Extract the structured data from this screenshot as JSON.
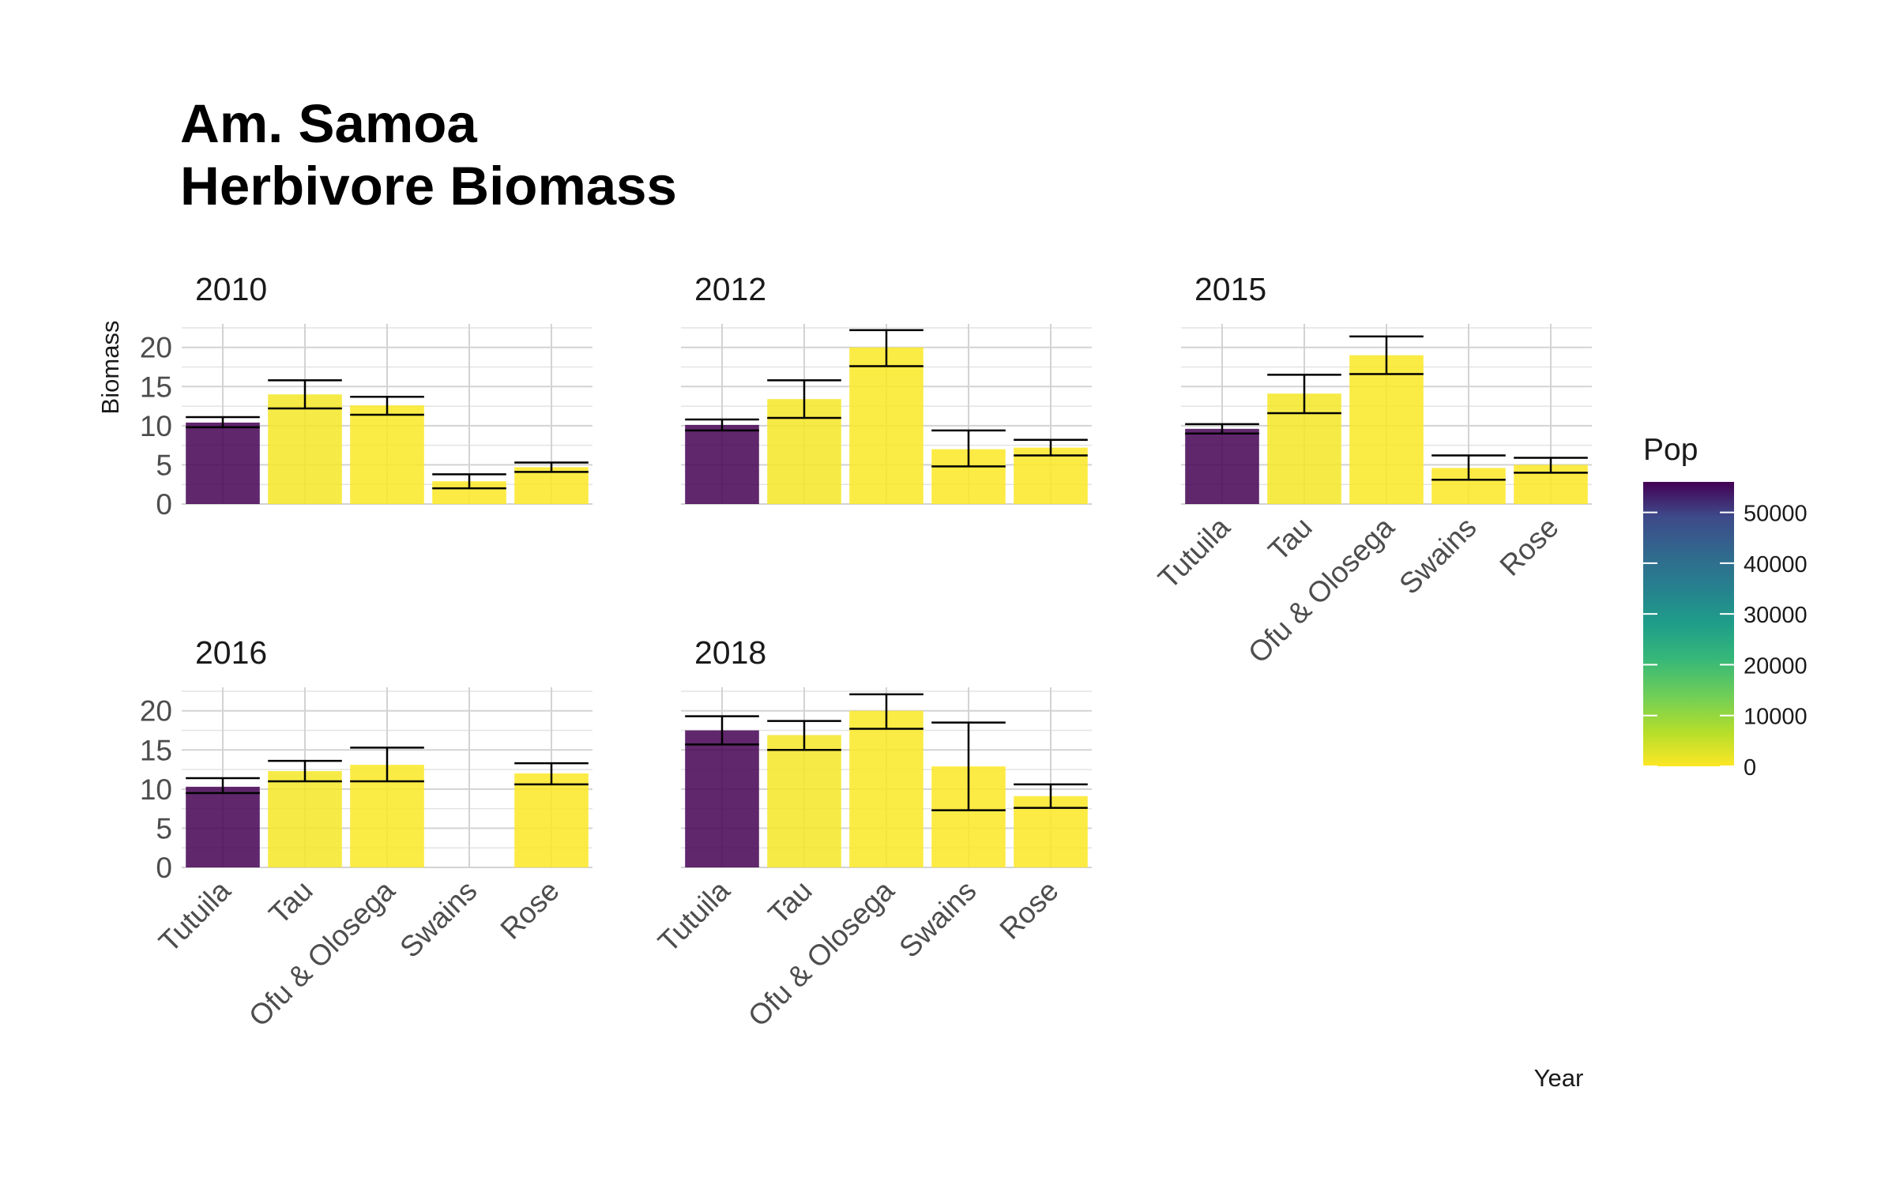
{
  "title_lines": [
    "Am. Samoa",
    "Herbivore Biomass"
  ],
  "ylabel": "Biomass",
  "xlabel": "Year",
  "legend": {
    "title": "Pop",
    "ticks": [
      0,
      10000,
      20000,
      30000,
      40000,
      50000
    ],
    "range": [
      0,
      56000
    ],
    "colors": {
      "low": "#fde725",
      "high": "#440154"
    }
  },
  "chart_data": {
    "type": "bar",
    "categories": [
      "Tutuila",
      "Tau",
      "Ofu & Olosega",
      "Swains",
      "Rose"
    ],
    "ylim": [
      0,
      23
    ],
    "yticks": [
      0,
      5,
      10,
      15,
      20
    ],
    "population": [
      56000,
      800,
      300,
      20,
      0
    ],
    "panels": [
      {
        "year": "2010",
        "values": [
          10.4,
          14.0,
          12.6,
          2.9,
          4.7
        ],
        "lower": [
          9.8,
          12.2,
          11.4,
          2.0,
          4.1
        ],
        "upper": [
          11.1,
          15.8,
          13.7,
          3.8,
          5.3
        ]
      },
      {
        "year": "2012",
        "values": [
          10.1,
          13.4,
          20.0,
          7.0,
          7.2
        ],
        "lower": [
          9.4,
          11.0,
          17.6,
          4.8,
          6.2
        ],
        "upper": [
          10.8,
          15.8,
          22.2,
          9.4,
          8.2
        ]
      },
      {
        "year": "2015",
        "values": [
          9.6,
          14.1,
          19.0,
          4.6,
          5.0
        ],
        "lower": [
          9.0,
          11.6,
          16.6,
          3.1,
          4.0
        ],
        "upper": [
          10.2,
          16.5,
          21.4,
          6.2,
          5.9
        ]
      },
      {
        "year": "2016",
        "values": [
          10.3,
          12.3,
          13.1,
          null,
          12.0
        ],
        "lower": [
          9.5,
          11.0,
          11.0,
          null,
          10.6
        ],
        "upper": [
          11.4,
          13.6,
          15.3,
          null,
          13.3
        ]
      },
      {
        "year": "2018",
        "values": [
          17.5,
          16.9,
          20.0,
          12.9,
          9.1
        ],
        "lower": [
          15.7,
          15.0,
          17.7,
          7.3,
          7.6
        ],
        "upper": [
          19.3,
          18.7,
          22.1,
          18.5,
          10.6
        ]
      }
    ]
  }
}
